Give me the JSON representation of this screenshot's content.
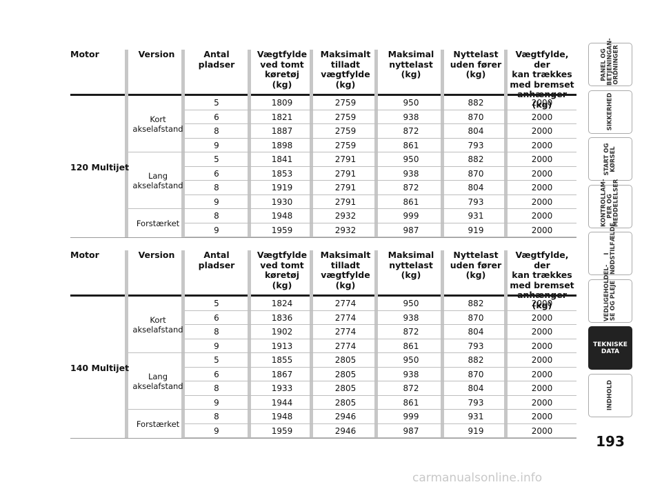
{
  "headers": [
    "Motor",
    "Version",
    "Antal\npladser",
    "Vægtfylde\nved tomt\nkøretøj\n(kg)",
    "Maksimalt\ntilladt\nvægtfylde\n(kg)",
    "Maksimal\nnyttelast\n(kg)",
    "Nyttelast\nuden fører\n(kg)",
    "Vægtfylde, der\nkan trækkes\nmed bremset\nanhænger (kg)"
  ],
  "tables": [
    {
      "motor": "120 Multijet",
      "versions": [
        "Kort\nakselafstand",
        "Lang\nakselafstand",
        "Forstærket"
      ],
      "rows": [
        [
          "5",
          "1809",
          "2759",
          "950",
          "882",
          "2000"
        ],
        [
          "6",
          "1821",
          "2759",
          "938",
          "870",
          "2000"
        ],
        [
          "8",
          "1887",
          "2759",
          "872",
          "804",
          "2000"
        ],
        [
          "9",
          "1898",
          "2759",
          "861",
          "793",
          "2000"
        ],
        [
          "5",
          "1841",
          "2791",
          "950",
          "882",
          "2000"
        ],
        [
          "6",
          "1853",
          "2791",
          "938",
          "870",
          "2000"
        ],
        [
          "8",
          "1919",
          "2791",
          "872",
          "804",
          "2000"
        ],
        [
          "9",
          "1930",
          "2791",
          "861",
          "793",
          "2000"
        ],
        [
          "8",
          "1948",
          "2932",
          "999",
          "931",
          "2000"
        ],
        [
          "9",
          "1959",
          "2932",
          "987",
          "919",
          "2000"
        ]
      ]
    },
    {
      "motor": "140 Multijet",
      "versions": [
        "Kort\nakselafstand",
        "Lang\nakselafstand",
        "Forstærket"
      ],
      "rows": [
        [
          "5",
          "1824",
          "2774",
          "950",
          "882",
          "2000"
        ],
        [
          "6",
          "1836",
          "2774",
          "938",
          "870",
          "2000"
        ],
        [
          "8",
          "1902",
          "2774",
          "872",
          "804",
          "2000"
        ],
        [
          "9",
          "1913",
          "2774",
          "861",
          "793",
          "2000"
        ],
        [
          "5",
          "1855",
          "2805",
          "950",
          "882",
          "2000"
        ],
        [
          "6",
          "1867",
          "2805",
          "938",
          "870",
          "2000"
        ],
        [
          "8",
          "1933",
          "2805",
          "872",
          "804",
          "2000"
        ],
        [
          "9",
          "1944",
          "2805",
          "861",
          "793",
          "2000"
        ],
        [
          "8",
          "1948",
          "2946",
          "999",
          "931",
          "2000"
        ],
        [
          "9",
          "1959",
          "2946",
          "987",
          "919",
          "2000"
        ]
      ]
    }
  ],
  "tabs": [
    {
      "label": "PANEL OG\nBETJENINGAN-\nORDNINGER",
      "active": false
    },
    {
      "label": "SIKKERHED",
      "active": false
    },
    {
      "label": "START OG\nKØRSEL",
      "active": false
    },
    {
      "label": "KONTROLLAM-\nPER OG\nMEDDELELSER",
      "active": false
    },
    {
      "label": "I\nNØDSTILFÆLDE",
      "active": false
    },
    {
      "label": "VEDLIGEHOLDEL-\nSE OG PLEJE",
      "active": false
    },
    {
      "label": "TEKNISKE\nDATA",
      "active": true
    },
    {
      "label": "INDHOLD",
      "active": false
    }
  ],
  "page_number": "193",
  "watermark": "carmanualsonline.info"
}
